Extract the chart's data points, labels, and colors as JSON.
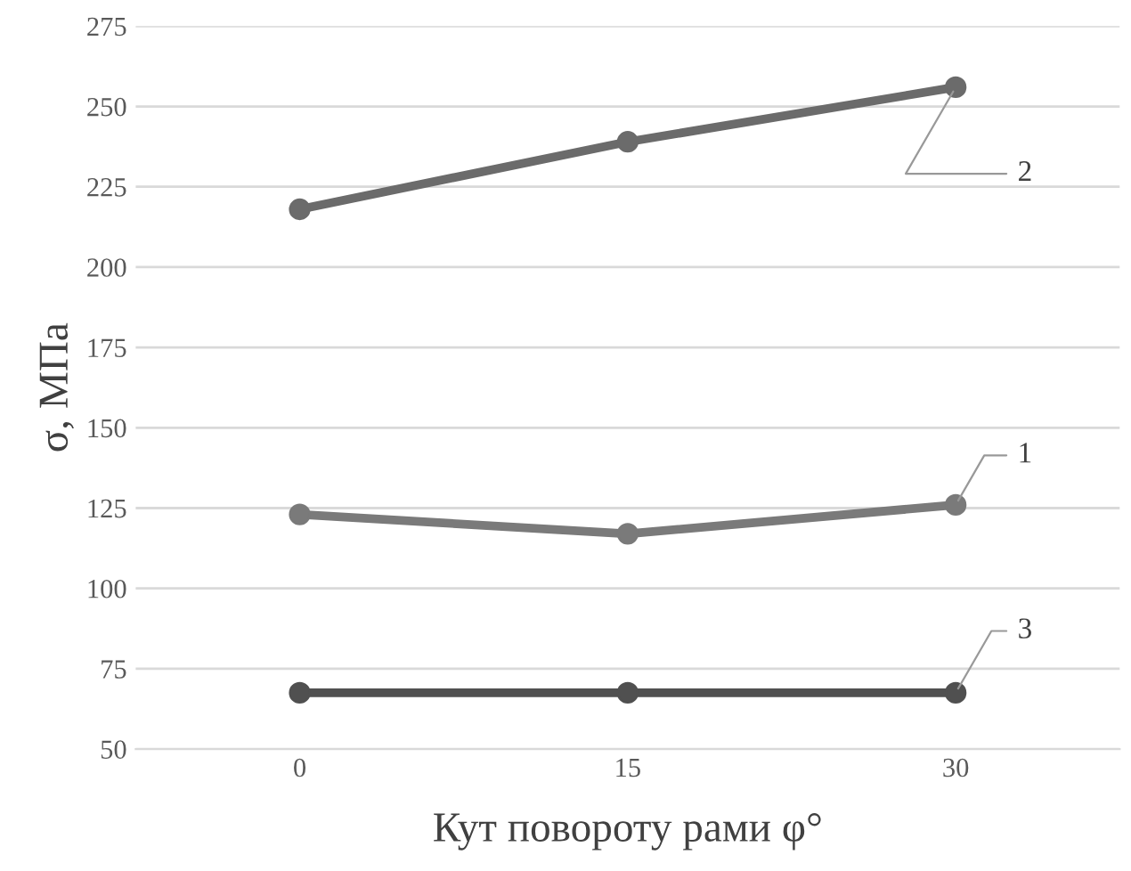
{
  "chart_data": {
    "type": "line",
    "xlabel": "Кут повороту рами φ°",
    "ylabel": "σ, МПа",
    "categories": [
      "0",
      "15",
      "30"
    ],
    "series": [
      {
        "name": "2",
        "color": "#6b6b6b",
        "values": [
          218,
          239,
          256
        ]
      },
      {
        "name": "1",
        "color": "#7a7a7a",
        "values": [
          123,
          117,
          126
        ]
      },
      {
        "name": "3",
        "color": "#505050",
        "values": [
          67.5,
          67.5,
          67.5
        ]
      }
    ],
    "ylim": [
      50,
      275
    ],
    "yticks": [
      50,
      75,
      100,
      125,
      150,
      175,
      200,
      225,
      250,
      275
    ],
    "grid": "y",
    "marker": "circle",
    "line_style": "solid",
    "legend": false
  }
}
